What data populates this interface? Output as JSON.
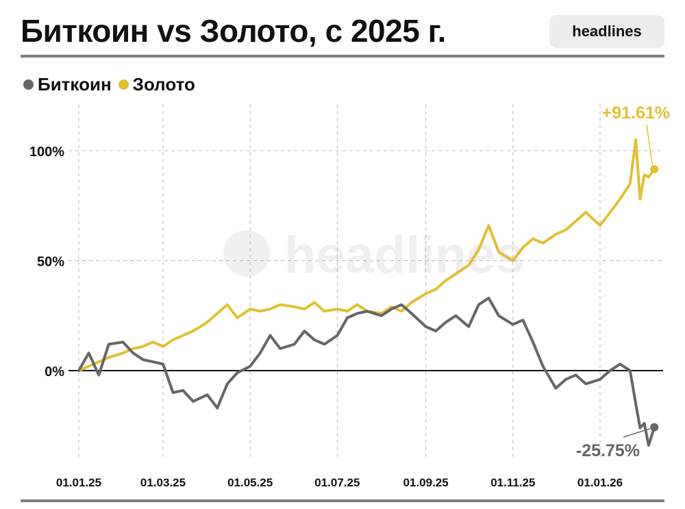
{
  "header": {
    "title": "Биткоин vs Золото, с 2025 г.",
    "brand": "headlines"
  },
  "legend": [
    {
      "label": "Биткоин",
      "color": "#666666"
    },
    {
      "label": "Золото",
      "color": "#e1c133"
    }
  ],
  "watermark": "headlines",
  "chart_data": {
    "type": "line",
    "title": "Биткоин vs Золото, с 2025 г.",
    "xlabel": "",
    "ylabel": "",
    "x_tick_labels": [
      "01.01.25",
      "01.03.25",
      "01.05.25",
      "01.07.25",
      "01.09.25",
      "01.11.25",
      "01.01.26"
    ],
    "y_tick_labels": [
      "0%",
      "50%",
      "100%"
    ],
    "ylim": [
      -40,
      120
    ],
    "grid": true,
    "legend_position": "top-left",
    "annotations": [
      {
        "series": "Золото",
        "text": "+91.61%",
        "value": 91.61
      },
      {
        "series": "Биткоин",
        "text": "-25.75%",
        "value": -25.75
      }
    ],
    "x": [
      "2025-01-01",
      "2025-01-08",
      "2025-01-15",
      "2025-01-22",
      "2025-02-01",
      "2025-02-08",
      "2025-02-15",
      "2025-02-22",
      "2025-03-01",
      "2025-03-08",
      "2025-03-15",
      "2025-03-22",
      "2025-04-01",
      "2025-04-08",
      "2025-04-15",
      "2025-04-22",
      "2025-05-01",
      "2025-05-08",
      "2025-05-15",
      "2025-05-22",
      "2025-06-01",
      "2025-06-08",
      "2025-06-15",
      "2025-06-22",
      "2025-07-01",
      "2025-07-08",
      "2025-07-15",
      "2025-07-22",
      "2025-08-01",
      "2025-08-08",
      "2025-08-15",
      "2025-08-22",
      "2025-09-01",
      "2025-09-08",
      "2025-09-15",
      "2025-09-22",
      "2025-10-01",
      "2025-10-08",
      "2025-10-15",
      "2025-10-22",
      "2025-11-01",
      "2025-11-08",
      "2025-11-15",
      "2025-11-22",
      "2025-12-01",
      "2025-12-08",
      "2025-12-15",
      "2025-12-22",
      "2026-01-01",
      "2026-01-08",
      "2026-01-15",
      "2026-01-22",
      "2026-01-26",
      "2026-01-29",
      "2026-02-01",
      "2026-02-04",
      "2026-02-08"
    ],
    "series": [
      {
        "name": "Биткоин",
        "color": "#666666",
        "values": [
          0,
          8,
          -2,
          12,
          13,
          8,
          5,
          4,
          3,
          -10,
          -9,
          -14,
          -11,
          -17,
          -6,
          -1,
          2,
          8,
          16,
          10,
          12,
          18,
          14,
          12,
          16,
          24,
          26,
          27,
          25,
          28,
          30,
          26,
          20,
          18,
          22,
          25,
          20,
          30,
          33,
          25,
          21,
          23,
          13,
          2,
          -8,
          -4,
          -2,
          -6,
          -4,
          0,
          3,
          0,
          -15,
          -26,
          -24,
          -34,
          -25.75
        ]
      },
      {
        "name": "Золото",
        "color": "#e1c133",
        "values": [
          0,
          2,
          4,
          6,
          8,
          10,
          11,
          13,
          11,
          14,
          16,
          18,
          22,
          26,
          30,
          24,
          28,
          27,
          28,
          30,
          29,
          28,
          31,
          27,
          28,
          27,
          30,
          27,
          26,
          29,
          27,
          31,
          35,
          37,
          41,
          44,
          48,
          55,
          66,
          54,
          50,
          56,
          60,
          58,
          62,
          64,
          68,
          72,
          66,
          72,
          78,
          85,
          105,
          78,
          89,
          88,
          91.61
        ]
      }
    ]
  }
}
